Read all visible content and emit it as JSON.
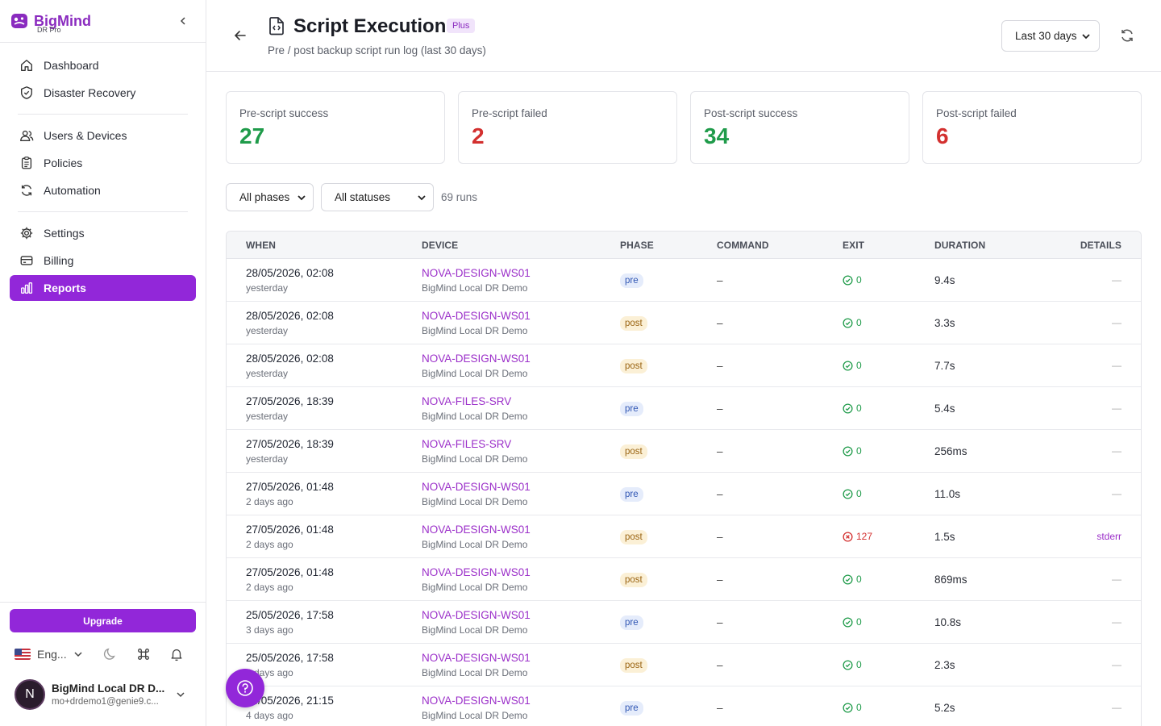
{
  "brand": {
    "name": "BigMind",
    "sub": "DR Pro"
  },
  "nav": {
    "group1": [
      {
        "label": "Dashboard",
        "icon": "home-icon"
      },
      {
        "label": "Disaster Recovery",
        "icon": "shield-icon"
      }
    ],
    "group2": [
      {
        "label": "Users & Devices",
        "icon": "users-icon"
      },
      {
        "label": "Policies",
        "icon": "clipboard-icon"
      },
      {
        "label": "Automation",
        "icon": "refresh-icon"
      }
    ],
    "group3": [
      {
        "label": "Settings",
        "icon": "gear-icon"
      },
      {
        "label": "Billing",
        "icon": "card-icon"
      },
      {
        "label": "Reports",
        "icon": "bar-chart-icon",
        "active": true
      }
    ]
  },
  "sidebar_bottom": {
    "upgrade_label": "Upgrade",
    "language": "Eng...",
    "user_initial": "N",
    "user_name": "BigMind Local DR D...",
    "user_email": "mo+drdemo1@genie9.c..."
  },
  "header": {
    "title": "Script Execution",
    "badge": "Plus",
    "subtitle": "Pre / post backup script run log (last 30 days)",
    "range": "Last 30 days"
  },
  "stats": [
    {
      "label": "Pre-script success",
      "value": "27",
      "tone": "green"
    },
    {
      "label": "Pre-script failed",
      "value": "2",
      "tone": "red"
    },
    {
      "label": "Post-script success",
      "value": "34",
      "tone": "green"
    },
    {
      "label": "Post-script failed",
      "value": "6",
      "tone": "red"
    }
  ],
  "filters": {
    "phase": "All phases",
    "status": "All statuses",
    "count": "69 runs"
  },
  "table": {
    "columns": [
      "WHEN",
      "DEVICE",
      "PHASE",
      "COMMAND",
      "EXIT",
      "DURATION",
      "DETAILS"
    ],
    "rows": [
      {
        "date": "28/05/2026, 02:08",
        "rel": "yesterday",
        "device": "NOVA-DESIGN-WS01",
        "org": "BigMind Local DR Demo",
        "phase": "pre",
        "command": "–",
        "exit": "0",
        "ok": true,
        "duration": "9.4s",
        "details": "—"
      },
      {
        "date": "28/05/2026, 02:08",
        "rel": "yesterday",
        "device": "NOVA-DESIGN-WS01",
        "org": "BigMind Local DR Demo",
        "phase": "post",
        "command": "–",
        "exit": "0",
        "ok": true,
        "duration": "3.3s",
        "details": "—"
      },
      {
        "date": "28/05/2026, 02:08",
        "rel": "yesterday",
        "device": "NOVA-DESIGN-WS01",
        "org": "BigMind Local DR Demo",
        "phase": "post",
        "command": "–",
        "exit": "0",
        "ok": true,
        "duration": "7.7s",
        "details": "—"
      },
      {
        "date": "27/05/2026, 18:39",
        "rel": "yesterday",
        "device": "NOVA-FILES-SRV",
        "org": "BigMind Local DR Demo",
        "phase": "pre",
        "command": "–",
        "exit": "0",
        "ok": true,
        "duration": "5.4s",
        "details": "—"
      },
      {
        "date": "27/05/2026, 18:39",
        "rel": "yesterday",
        "device": "NOVA-FILES-SRV",
        "org": "BigMind Local DR Demo",
        "phase": "post",
        "command": "–",
        "exit": "0",
        "ok": true,
        "duration": "256ms",
        "details": "—"
      },
      {
        "date": "27/05/2026, 01:48",
        "rel": "2 days ago",
        "device": "NOVA-DESIGN-WS01",
        "org": "BigMind Local DR Demo",
        "phase": "pre",
        "command": "–",
        "exit": "0",
        "ok": true,
        "duration": "11.0s",
        "details": "—"
      },
      {
        "date": "27/05/2026, 01:48",
        "rel": "2 days ago",
        "device": "NOVA-DESIGN-WS01",
        "org": "BigMind Local DR Demo",
        "phase": "post",
        "command": "–",
        "exit": "127",
        "ok": false,
        "duration": "1.5s",
        "details": "stderr"
      },
      {
        "date": "27/05/2026, 01:48",
        "rel": "2 days ago",
        "device": "NOVA-DESIGN-WS01",
        "org": "BigMind Local DR Demo",
        "phase": "post",
        "command": "–",
        "exit": "0",
        "ok": true,
        "duration": "869ms",
        "details": "—"
      },
      {
        "date": "25/05/2026, 17:58",
        "rel": "3 days ago",
        "device": "NOVA-DESIGN-WS01",
        "org": "BigMind Local DR Demo",
        "phase": "pre",
        "command": "–",
        "exit": "0",
        "ok": true,
        "duration": "10.8s",
        "details": "—"
      },
      {
        "date": "25/05/2026, 17:58",
        "rel": "3 days ago",
        "device": "NOVA-DESIGN-WS01",
        "org": "BigMind Local DR Demo",
        "phase": "post",
        "command": "–",
        "exit": "0",
        "ok": true,
        "duration": "2.3s",
        "details": "—"
      },
      {
        "date": "24/05/2026, 21:15",
        "rel": "4 days ago",
        "device": "NOVA-DESIGN-WS01",
        "org": "BigMind Local DR Demo",
        "phase": "pre",
        "command": "–",
        "exit": "0",
        "ok": true,
        "duration": "5.2s",
        "details": "—"
      }
    ]
  },
  "colors": {
    "accent": "#9227d9",
    "success": "#1f9b4a",
    "danger": "#d3302f"
  }
}
